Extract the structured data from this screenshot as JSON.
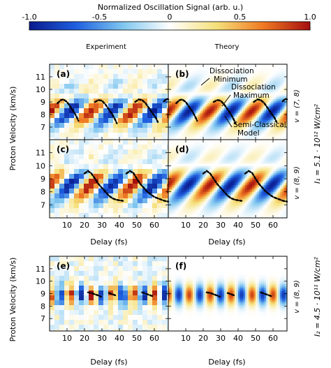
{
  "colorbar": {
    "title": "Normalized Oscillation Signal (arb. u.)",
    "ticks": [
      "-1.0",
      "-0.5",
      "0",
      "0.5",
      "1.0"
    ],
    "tick_values": [
      -1.0,
      -0.5,
      0,
      0.5,
      1.0
    ],
    "colors": [
      "#0a1a8c",
      "#1f5fe0",
      "#7fc6ef",
      "#ffffff",
      "#f5e07a",
      "#f07a23",
      "#a50f0f"
    ]
  },
  "columns": {
    "left": "Experiment",
    "right": "Theory"
  },
  "axes": {
    "ylabel": "Proton Velocity (km/s)",
    "xlabel": "Delay (fs)",
    "xticks": [
      "10",
      "20",
      "30",
      "40",
      "50",
      "60"
    ],
    "yticks": [
      "7",
      "8",
      "9",
      "10",
      "11"
    ]
  },
  "panels": [
    {
      "label": "(a)"
    },
    {
      "label": "(b)"
    },
    {
      "label": "(c)"
    },
    {
      "label": "(d)"
    },
    {
      "label": "(e)"
    },
    {
      "label": "(f)"
    }
  ],
  "row_labels": [
    {
      "v": "v = (7, 8)"
    },
    {
      "v": "v = (8, 9)"
    },
    {
      "v": "v = (8, 9)"
    }
  ],
  "intensity_labels": [
    "I₁ = 5.1 · 10¹² W/cm²",
    "I₂ = 4.5 · 10¹¹ W/cm²"
  ],
  "annotations": {
    "dissociation_minimum": [
      "Dissociation",
      "Minimum"
    ],
    "dissociation_maximum": [
      "Dissociation",
      "Maximum"
    ],
    "semi_classical": [
      "Semi-Classical",
      "Model"
    ]
  },
  "chart_data": {
    "type": "heatmap",
    "x": {
      "label": "Delay (fs)",
      "range": [
        0,
        68
      ]
    },
    "y": {
      "label": "Proton Velocity (km/s)",
      "range": [
        6,
        12
      ]
    },
    "color_range": [
      -1.0,
      1.0
    ],
    "rows": [
      {
        "rows_label": "v = (7, 8)",
        "band": {
          "center": 8.3,
          "width": 0.9,
          "period": 24,
          "slope": -6,
          "amp_exp": 1.0,
          "amp_th": 1.0
        },
        "semi_classical": [
          [
            [
              4.5,
              8.9
            ],
            [
              6.5,
              9.15
            ],
            [
              8,
              9.2
            ],
            [
              10,
              9.0
            ],
            [
              12,
              8.6
            ],
            [
              14,
              8.2
            ],
            [
              15.5,
              7.8
            ],
            [
              16.5,
              7.5
            ]
          ],
          [
            [
              26,
              9.0
            ],
            [
              28,
              9.15
            ],
            [
              30,
              9.1
            ],
            [
              32,
              8.8
            ],
            [
              34,
              8.4
            ],
            [
              36,
              8.0
            ],
            [
              37.5,
              7.6
            ],
            [
              38.5,
              7.3
            ]
          ],
          [
            [
              49,
              9.0
            ],
            [
              51,
              9.2
            ],
            [
              53,
              9.15
            ],
            [
              55,
              8.9
            ],
            [
              57,
              8.5
            ],
            [
              59,
              8.1
            ],
            [
              61,
              7.7
            ],
            [
              62,
              7.4
            ]
          ],
          [
            [
              65.5,
              9.05
            ],
            [
              67,
              9.25
            ],
            [
              68,
              9.2
            ]
          ]
        ]
      },
      {
        "rows_label": "v = (8, 9)",
        "band": {
          "center": 8.6,
          "width": 1.0,
          "period": 24,
          "slope": -6,
          "amp_exp": 1.0,
          "amp_th": 1.0
        },
        "semi_classical": [
          [
            [
              20,
              9.4
            ],
            [
              22,
              9.6
            ],
            [
              24,
              9.4
            ],
            [
              26,
              9.0
            ],
            [
              28,
              8.6
            ],
            [
              30,
              8.3
            ],
            [
              32,
              8.0
            ],
            [
              34,
              7.7
            ],
            [
              36,
              7.5
            ],
            [
              38,
              7.4
            ],
            [
              40,
              7.35
            ],
            [
              42,
              7.3
            ]
          ],
          [
            [
              44,
              9.4
            ],
            [
              46,
              9.6
            ],
            [
              48,
              9.45
            ],
            [
              50,
              9.0
            ],
            [
              52,
              8.6
            ],
            [
              54,
              8.3
            ],
            [
              56,
              8.0
            ],
            [
              58,
              7.8
            ],
            [
              60,
              7.6
            ],
            [
              62,
              7.5
            ],
            [
              64,
              7.4
            ],
            [
              66,
              7.3
            ],
            [
              68,
              7.25
            ]
          ]
        ]
      },
      {
        "rows_label": "v = (8, 9)",
        "band": {
          "center": 8.9,
          "width": 0.55,
          "period": 12,
          "slope": 0,
          "amp_exp": 0.9,
          "amp_th": 0.85
        },
        "semi_classical": [
          [
            [
              22,
              9.1
            ],
            [
              24,
              9.05
            ],
            [
              26,
              8.95
            ],
            [
              28,
              8.85
            ],
            [
              29.5,
              8.75
            ]
          ],
          [
            [
              34,
              9.05
            ],
            [
              36,
              8.95
            ],
            [
              38,
              8.85
            ]
          ],
          [
            [
              53,
              9.1
            ],
            [
              55,
              9.0
            ],
            [
              57,
              8.9
            ],
            [
              59,
              8.8
            ]
          ]
        ]
      }
    ]
  }
}
